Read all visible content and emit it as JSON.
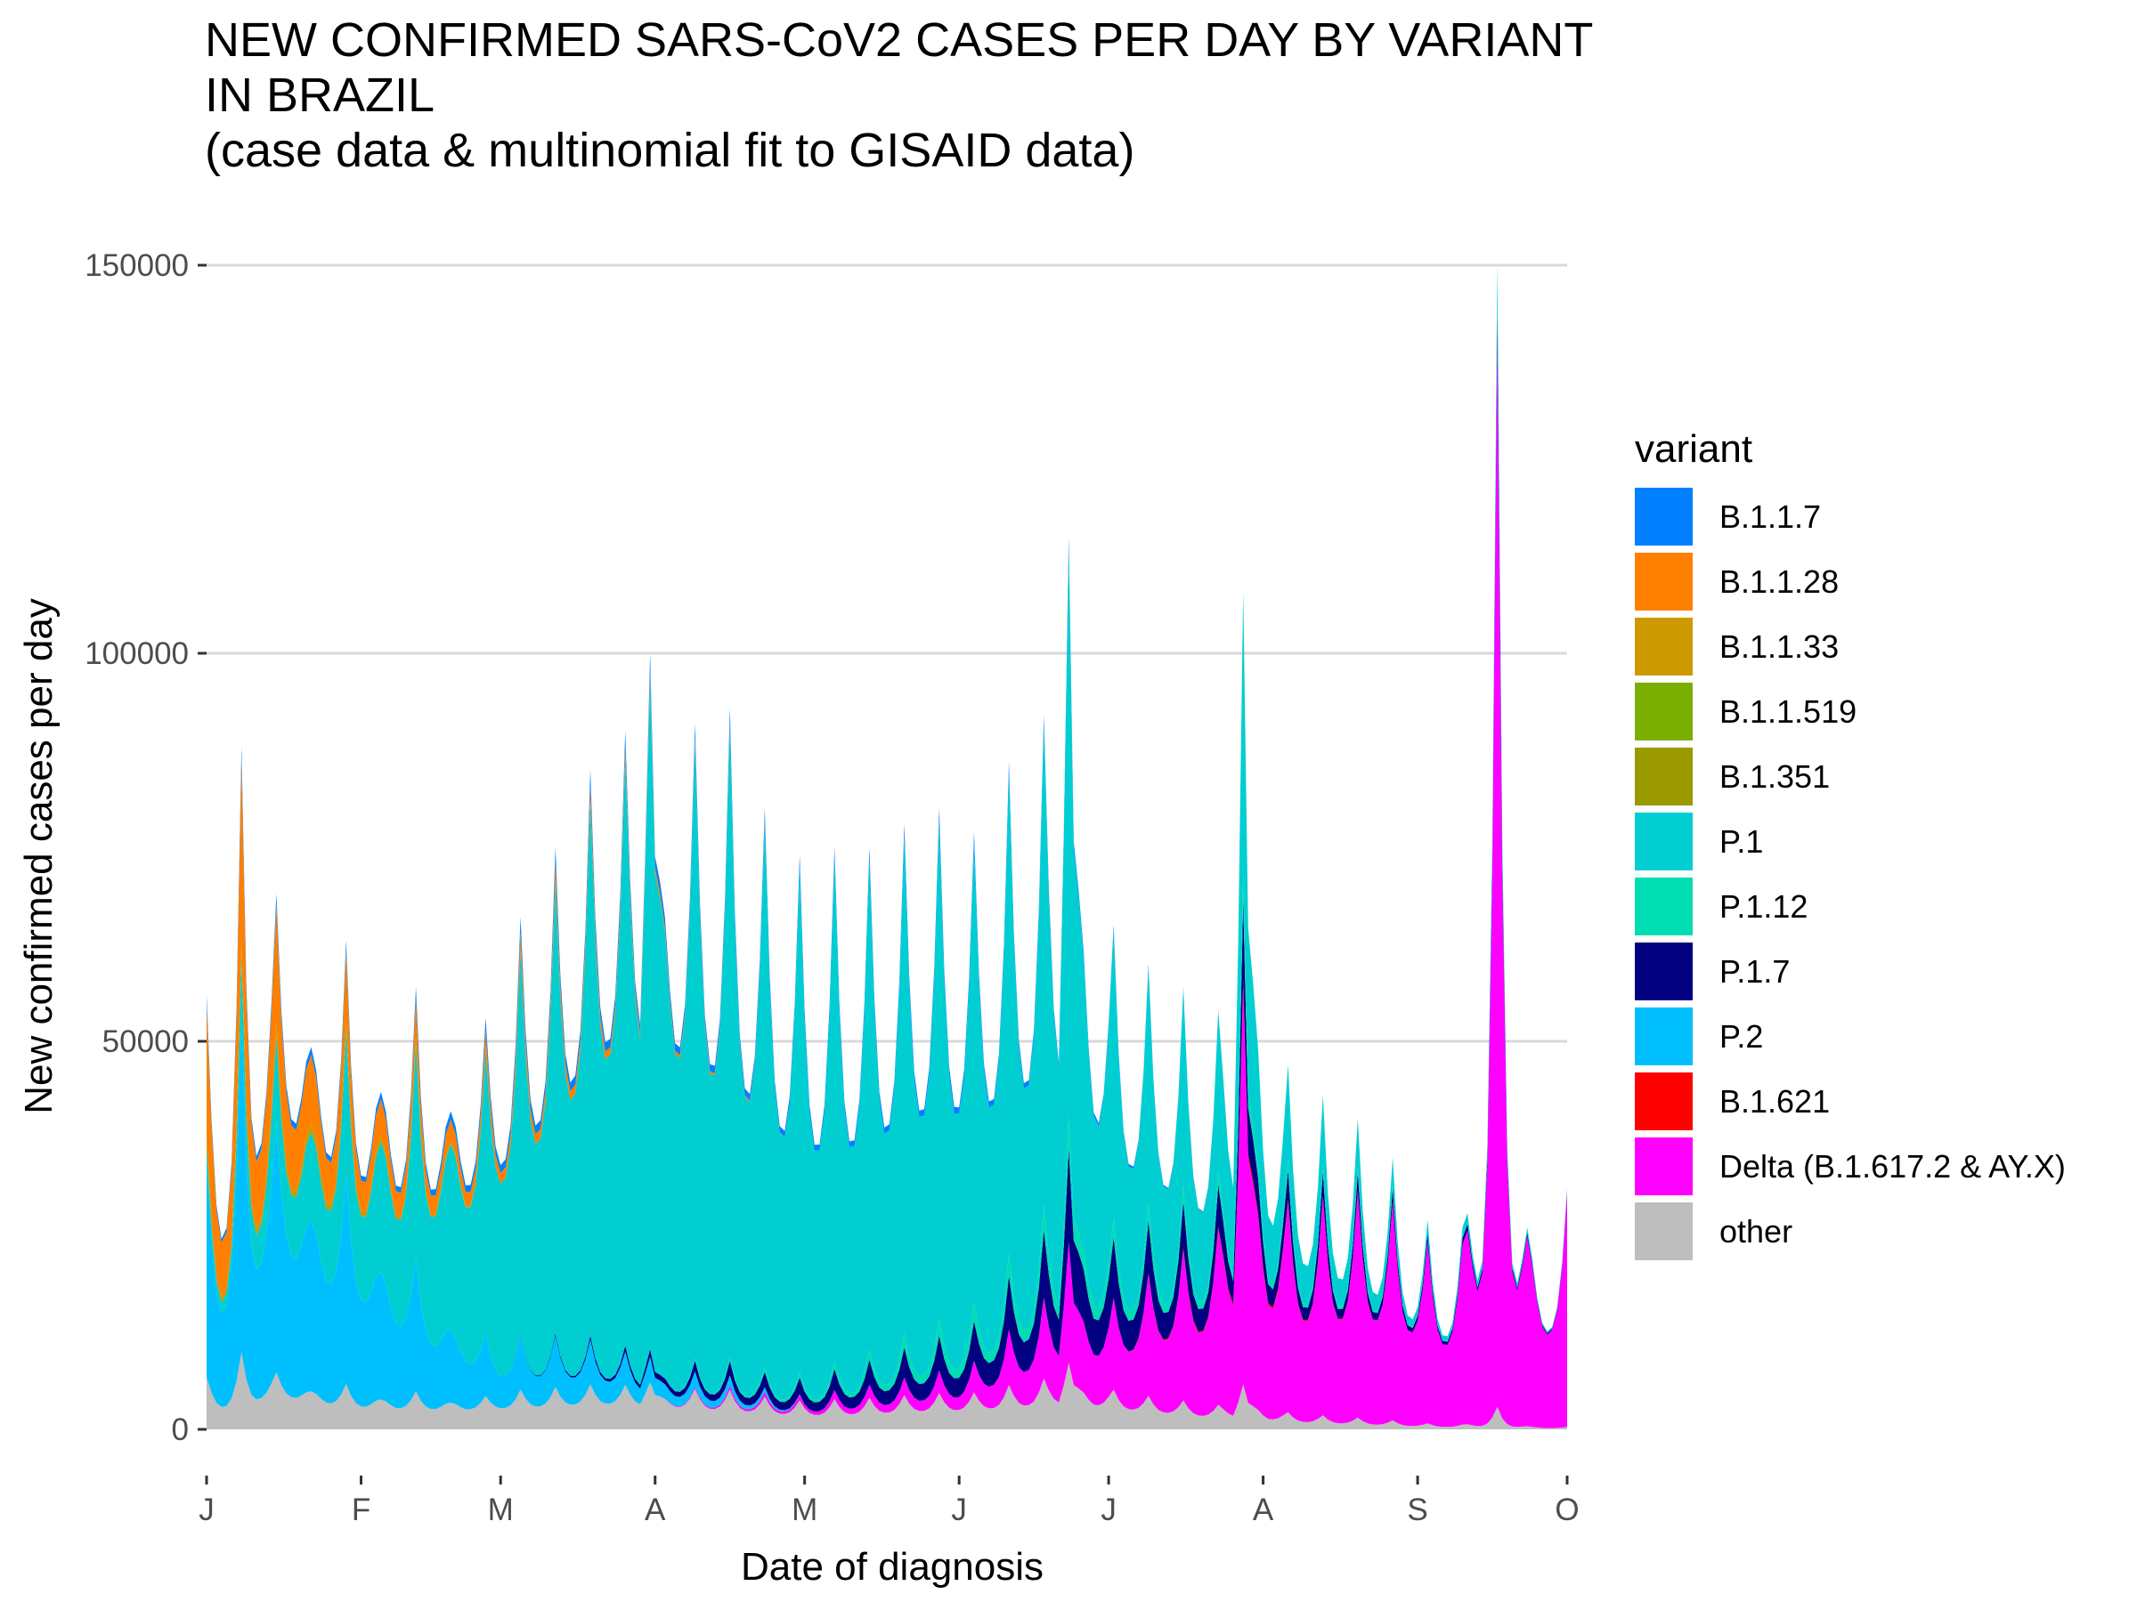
{
  "chart_data": {
    "type": "area",
    "stacked": true,
    "title_lines": [
      "NEW CONFIRMED SARS-CoV2 CASES PER DAY BY VARIANT",
      "IN BRAZIL",
      "(case data & multinomial fit to GISAID data)"
    ],
    "xlabel": "Date of diagnosis",
    "ylabel": "New confirmed cases per day",
    "x_tick_labels": [
      "J",
      "F",
      "M",
      "A",
      "M",
      "J",
      "J",
      "A",
      "S",
      "O"
    ],
    "x_tick_dates": [
      "2021-01-01",
      "2021-02-01",
      "2021-03-01",
      "2021-04-01",
      "2021-05-01",
      "2021-06-01",
      "2021-07-01",
      "2021-08-01",
      "2021-09-01",
      "2021-10-01"
    ],
    "x_range": [
      "2021-01-01",
      "2021-10-01"
    ],
    "y_ticks": [
      0,
      50000,
      100000,
      150000
    ],
    "ylim": [
      0,
      150000
    ],
    "grid": "horizontal major",
    "legend_title": "variant",
    "legend_position": "right",
    "variants": [
      {
        "name": "B.1.1.7",
        "color": "#0080FF"
      },
      {
        "name": "B.1.1.28",
        "color": "#FF7F00"
      },
      {
        "name": "B.1.1.33",
        "color": "#CC9900"
      },
      {
        "name": "B.1.1.519",
        "color": "#7CB000"
      },
      {
        "name": "B.1.351",
        "color": "#9A9A00"
      },
      {
        "name": "P.1",
        "color": "#00CED1"
      },
      {
        "name": "P.1.12",
        "color": "#00DDB3"
      },
      {
        "name": "P.1.7",
        "color": "#000080"
      },
      {
        "name": "P.2",
        "color": "#00BFFF"
      },
      {
        "name": "B.1.621",
        "color": "#FF0000"
      },
      {
        "name": "Delta (B.1.617.2 & AY.X)",
        "color": "#FF00FF"
      },
      {
        "name": "other",
        "color": "#BEBEBE"
      }
    ],
    "total_weekly_pattern": {
      "description_keys": [
        "peak",
        "trough"
      ],
      "points": [
        {
          "date": "2021-01-01",
          "peak": 56000,
          "trough": 14000
        },
        {
          "date": "2021-01-08",
          "peak": 88000,
          "trough": 20000
        },
        {
          "date": "2021-01-15",
          "peak": 69000,
          "trough": 37000
        },
        {
          "date": "2021-01-29",
          "peak": 63000,
          "trough": 28000
        },
        {
          "date": "2021-02-12",
          "peak": 57000,
          "trough": 26000
        },
        {
          "date": "2021-02-26",
          "peak": 53000,
          "trough": 28000
        },
        {
          "date": "2021-03-05",
          "peak": 66000,
          "trough": 32000
        },
        {
          "date": "2021-03-12",
          "peak": 75000,
          "trough": 36000
        },
        {
          "date": "2021-03-19",
          "peak": 85000,
          "trough": 42000
        },
        {
          "date": "2021-03-26",
          "peak": 90000,
          "trough": 45000
        },
        {
          "date": "2021-03-31",
          "peak": 100000,
          "trough": 44000
        },
        {
          "date": "2021-04-09",
          "peak": 91000,
          "trough": 40000
        },
        {
          "date": "2021-04-16",
          "peak": 93000,
          "trough": 38000
        },
        {
          "date": "2021-04-23",
          "peak": 80000,
          "trough": 34000
        },
        {
          "date": "2021-04-30",
          "peak": 74000,
          "trough": 30000
        },
        {
          "date": "2021-05-07",
          "peak": 75000,
          "trough": 30000
        },
        {
          "date": "2021-05-14",
          "peak": 75000,
          "trough": 31000
        },
        {
          "date": "2021-05-21",
          "peak": 78000,
          "trough": 34000
        },
        {
          "date": "2021-05-28",
          "peak": 80000,
          "trough": 35000
        },
        {
          "date": "2021-06-04",
          "peak": 77000,
          "trough": 35000
        },
        {
          "date": "2021-06-11",
          "peak": 86000,
          "trough": 36000
        },
        {
          "date": "2021-06-18",
          "peak": 92000,
          "trough": 38000
        },
        {
          "date": "2021-06-23",
          "peak": 115000,
          "trough": 36000
        },
        {
          "date": "2021-07-02",
          "peak": 65000,
          "trough": 30000
        },
        {
          "date": "2021-07-09",
          "peak": 60000,
          "trough": 28000
        },
        {
          "date": "2021-07-16",
          "peak": 57000,
          "trough": 25000
        },
        {
          "date": "2021-07-23",
          "peak": 54000,
          "trough": 22000
        },
        {
          "date": "2021-07-28",
          "peak": 108000,
          "trough": 21000
        },
        {
          "date": "2021-08-06",
          "peak": 47000,
          "trough": 18000
        },
        {
          "date": "2021-08-13",
          "peak": 43000,
          "trough": 16000
        },
        {
          "date": "2021-08-20",
          "peak": 40000,
          "trough": 15000
        },
        {
          "date": "2021-08-27",
          "peak": 35000,
          "trough": 13000
        },
        {
          "date": "2021-09-03",
          "peak": 27000,
          "trough": 10000
        },
        {
          "date": "2021-09-10",
          "peak": 26000,
          "trough": 9000
        },
        {
          "date": "2021-09-17",
          "peak": 150000,
          "trough": 8000
        },
        {
          "date": "2021-09-24",
          "peak": 22000,
          "trough": 9000
        },
        {
          "date": "2021-10-01",
          "peak": 31000,
          "trough": 12000
        }
      ]
    },
    "variant_share_anchors": [
      {
        "date": "2021-01-01",
        "other": 0.12,
        "P.2": 0.5,
        "B.1.1.28": 0.3,
        "B.1.1.33": 0.03,
        "P.1": 0.03,
        "B.1.1.7": 0.02
      },
      {
        "date": "2021-02-01",
        "other": 0.09,
        "P.2": 0.42,
        "B.1.1.28": 0.12,
        "B.1.1.33": 0.02,
        "P.1": 0.33,
        "B.1.1.7": 0.02
      },
      {
        "date": "2021-03-01",
        "other": 0.08,
        "P.2": 0.12,
        "B.1.1.28": 0.04,
        "P.1": 0.73,
        "B.1.1.7": 0.03
      },
      {
        "date": "2021-04-01",
        "other": 0.06,
        "P.2": 0.03,
        "B.1.1.28": 0.01,
        "P.1": 0.87,
        "P.1.7": 0.01,
        "B.1.1.7": 0.02
      },
      {
        "date": "2021-05-01",
        "other": 0.05,
        "P.1": 0.88,
        "P.1.7": 0.03,
        "P.1.12": 0.01,
        "Delta (B.1.617.2 & AY.X)": 0.01,
        "B.1.1.7": 0.02
      },
      {
        "date": "2021-06-01",
        "other": 0.06,
        "P.1": 0.79,
        "P.1.7": 0.06,
        "P.1.12": 0.03,
        "Delta (B.1.617.2 & AY.X)": 0.04,
        "B.1.1.7": 0.02
      },
      {
        "date": "2021-07-01",
        "other": 0.08,
        "P.1": 0.58,
        "P.1.7": 0.12,
        "P.1.12": 0.04,
        "Delta (B.1.617.2 & AY.X)": 0.17,
        "B.1.1.7": 0.01
      },
      {
        "date": "2021-08-01",
        "other": 0.05,
        "P.1": 0.3,
        "P.1.7": 0.09,
        "P.1.12": 0.03,
        "Delta (B.1.617.2 & AY.X)": 0.52,
        "B.1.621": 0.01
      },
      {
        "date": "2021-09-01",
        "other": 0.03,
        "P.1": 0.06,
        "P.1.7": 0.04,
        "P.1.12": 0.01,
        "Delta (B.1.617.2 & AY.X)": 0.86
      },
      {
        "date": "2021-10-01",
        "other": 0.01,
        "P.1": 0.01,
        "P.1.7": 0.01,
        "Delta (B.1.617.2 & AY.X)": 0.97
      }
    ]
  }
}
